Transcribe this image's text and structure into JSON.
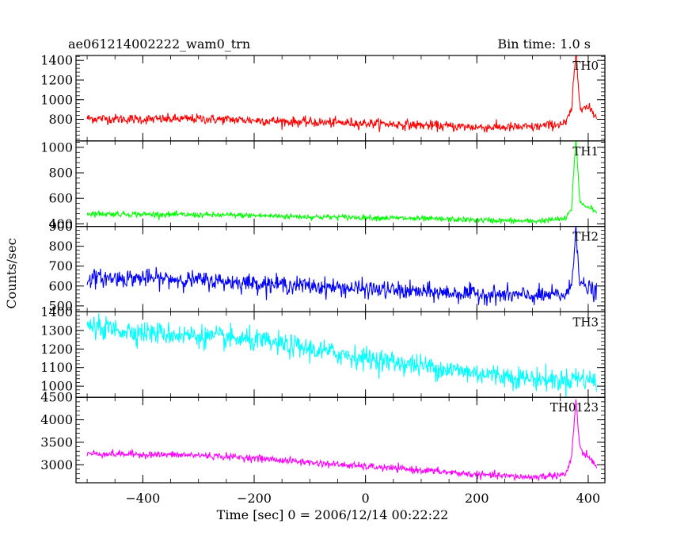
{
  "header": {
    "title": "ae061214002222_wam0_trn",
    "bin_time": "Bin time: 1.0 s"
  },
  "xaxis": {
    "label": "Time [sec] 0 = 2006/12/14 00:22:22",
    "ticks": [
      "−400",
      "−200",
      "0",
      "200",
      "400"
    ]
  },
  "yaxis": {
    "label": "Counts/sec"
  },
  "colors": {
    "TH0": "#ff0000",
    "TH1": "#00ff00",
    "TH2": "#0000ff",
    "TH3": "#00ffff",
    "TH0123": "#ff00ff"
  },
  "chart_data": {
    "type": "line",
    "title": "ae061214002222_wam0_trn",
    "xlabel": "Time [sec] 0 = 2006/12/14 00:22:22",
    "ylabel": "Counts/sec",
    "xlim": [
      -520,
      430
    ],
    "x_ticks": [
      -400,
      -200,
      0,
      200,
      400
    ],
    "bin_time_s": 1.0,
    "panels": [
      {
        "name": "TH0",
        "ylim": [
          580,
          1450
        ],
        "y_ticks": [
          800,
          1000,
          1200,
          1400
        ],
        "x": [
          -500,
          -400,
          -300,
          -200,
          -100,
          0,
          100,
          200,
          300,
          360,
          370,
          378,
          385,
          395,
          405,
          415
        ],
        "values": [
          810,
          800,
          805,
          790,
          770,
          760,
          740,
          720,
          720,
          760,
          900,
          1480,
          950,
          920,
          900,
          820
        ],
        "noise": 45
      },
      {
        "name": "TH1",
        "ylim": [
          380,
          1050
        ],
        "y_ticks": [
          400,
          600,
          800,
          1000
        ],
        "x": [
          -500,
          -400,
          -300,
          -200,
          -100,
          0,
          100,
          200,
          300,
          360,
          370,
          378,
          385,
          395,
          405,
          415
        ],
        "values": [
          480,
          475,
          470,
          465,
          455,
          450,
          440,
          430,
          420,
          440,
          520,
          1080,
          570,
          540,
          530,
          480
        ],
        "noise": 20
      },
      {
        "name": "TH2",
        "ylim": [
          470,
          900
        ],
        "y_ticks": [
          500,
          600,
          700,
          800,
          900
        ],
        "x": [
          -500,
          -400,
          -300,
          -200,
          -100,
          0,
          100,
          200,
          300,
          360,
          370,
          378,
          385,
          395,
          405,
          415
        ],
        "values": [
          640,
          640,
          630,
          615,
          600,
          585,
          570,
          560,
          550,
          555,
          600,
          900,
          620,
          590,
          585,
          560
        ],
        "noise": 40
      },
      {
        "name": "TH3",
        "ylim": [
          940,
          1400
        ],
        "y_ticks": [
          1000,
          1100,
          1200,
          1300,
          1400
        ],
        "x": [
          -500,
          -400,
          -300,
          -200,
          -100,
          0,
          100,
          200,
          300,
          360,
          370,
          378,
          385,
          395,
          405,
          415
        ],
        "values": [
          1320,
          1290,
          1270,
          1245,
          1200,
          1150,
          1110,
          1070,
          1040,
          1030,
          1040,
          1050,
          1040,
          1040,
          1035,
          1020
        ],
        "noise": 55
      },
      {
        "name": "TH0123",
        "ylim": [
          2600,
          4500
        ],
        "y_ticks": [
          3000,
          3500,
          4000,
          4500
        ],
        "x": [
          -500,
          -400,
          -300,
          -200,
          -100,
          0,
          100,
          200,
          300,
          360,
          370,
          378,
          385,
          395,
          405,
          415
        ],
        "values": [
          3250,
          3230,
          3210,
          3150,
          3050,
          2960,
          2880,
          2780,
          2720,
          2790,
          3150,
          4450,
          3350,
          3200,
          3150,
          2900
        ],
        "noise": 70
      }
    ]
  }
}
